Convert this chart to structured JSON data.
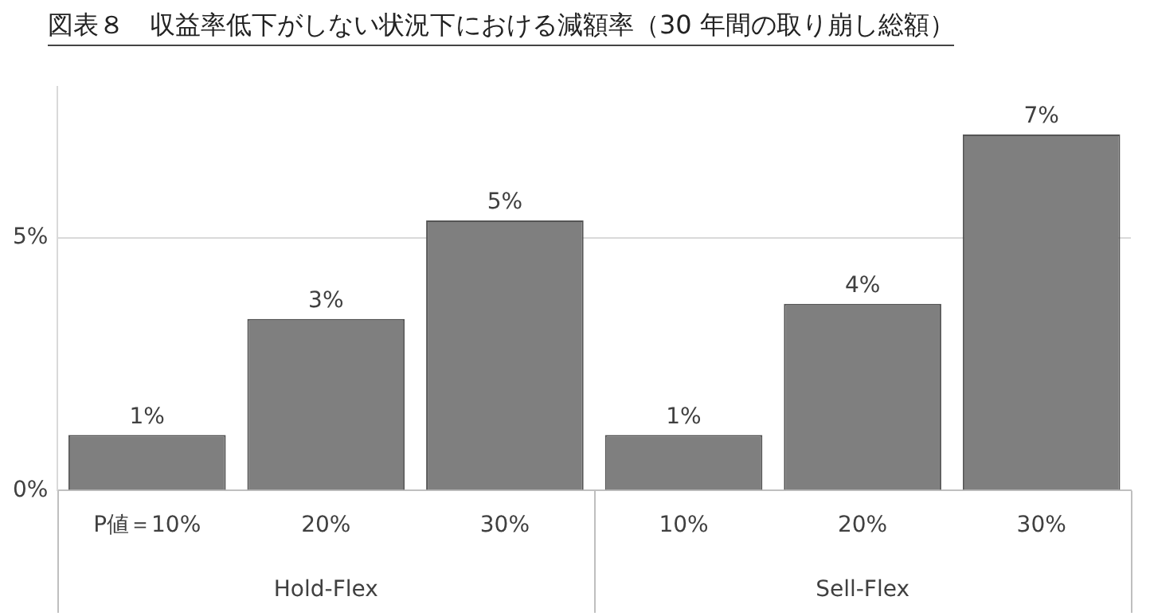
{
  "chart_data": {
    "type": "bar",
    "title": "図表８　収益率低下がしない状況下における減額率（30 年間の取り崩し総額）",
    "categories": [
      "P値＝10%",
      "20%",
      "30%",
      "10%",
      "20%",
      "30%"
    ],
    "values": [
      1.1,
      3.4,
      5.35,
      1.1,
      3.7,
      7.05
    ],
    "value_labels": [
      "1%",
      "3%",
      "5%",
      "1%",
      "4%",
      "7%"
    ],
    "color": "#7f7f7f",
    "yticks": [
      {
        "value": 0,
        "label": "0%"
      },
      {
        "value": 5,
        "label": "5%"
      }
    ],
    "ylim": [
      0,
      8
    ],
    "grid": "y",
    "legend": false,
    "annotations": [
      "Hold-Flex",
      "Sell-Flex"
    ]
  }
}
